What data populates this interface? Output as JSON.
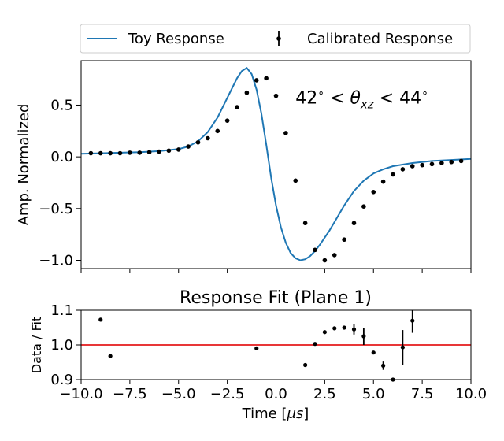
{
  "chart_data": [
    {
      "type": "line",
      "ylabel": "Amp. Normalized",
      "xlim": [
        -10,
        10
      ],
      "ylim": [
        -1.08,
        0.93
      ],
      "x_ticks": [
        -10,
        -7.5,
        -5,
        -2.5,
        0,
        2.5,
        5,
        7.5,
        10
      ],
      "y_ticks": [
        {
          "v": 0.5,
          "label": "0.5"
        },
        {
          "v": 0.0,
          "label": "0.0"
        },
        {
          "v": -0.5,
          "label": "−0.5"
        },
        {
          "v": -1.0,
          "label": "−1.0"
        }
      ],
      "legend": {
        "placement": "above",
        "entries": [
          {
            "label": "Toy Response",
            "color": "#1f77b4",
            "kind": "line"
          },
          {
            "label": "Calibrated Response",
            "color": "#000000",
            "kind": "errorbar"
          }
        ]
      },
      "annotation": {
        "parts": [
          {
            "text": "42",
            "role": "normal"
          },
          {
            "text": "∘",
            "role": "super"
          },
          {
            "text": " < ",
            "role": "normal"
          },
          {
            "text": "θ",
            "role": "italic"
          },
          {
            "text": "xz",
            "role": "sub"
          },
          {
            "text": " < 44",
            "role": "normal"
          },
          {
            "text": "∘",
            "role": "super"
          }
        ],
        "x": 1.0,
        "y": 0.57
      },
      "series": [
        {
          "name": "Toy Response",
          "kind": "line",
          "color": "#1f77b4",
          "x": [
            -10,
            -9,
            -8,
            -7,
            -6,
            -5,
            -4.5,
            -4,
            -3.5,
            -3,
            -2.5,
            -2,
            -1.75,
            -1.5,
            -1.25,
            -1,
            -0.75,
            -0.5,
            -0.25,
            0,
            0.25,
            0.5,
            0.75,
            1,
            1.25,
            1.5,
            1.75,
            2,
            2.25,
            2.5,
            2.75,
            3,
            3.5,
            4,
            4.5,
            5,
            5.5,
            6,
            7,
            8,
            9,
            10
          ],
          "y": [
            0.03,
            0.035,
            0.04,
            0.045,
            0.055,
            0.075,
            0.1,
            0.15,
            0.24,
            0.38,
            0.57,
            0.76,
            0.83,
            0.86,
            0.8,
            0.65,
            0.42,
            0.12,
            -0.2,
            -0.47,
            -0.68,
            -0.83,
            -0.93,
            -0.98,
            -1.0,
            -0.99,
            -0.96,
            -0.91,
            -0.85,
            -0.78,
            -0.71,
            -0.63,
            -0.47,
            -0.33,
            -0.23,
            -0.16,
            -0.12,
            -0.09,
            -0.06,
            -0.04,
            -0.03,
            -0.02
          ]
        },
        {
          "name": "Calibrated Response",
          "kind": "scatter",
          "color": "#000000",
          "x": [
            -9.5,
            -9,
            -8.5,
            -8,
            -7.5,
            -7,
            -6.5,
            -6,
            -5.5,
            -5,
            -4.5,
            -4,
            -3.5,
            -3,
            -2.5,
            -2,
            -1.5,
            -1,
            -0.5,
            0,
            0.5,
            1,
            1.5,
            2,
            2.5,
            3,
            3.5,
            4,
            4.5,
            5,
            5.5,
            6,
            6.5,
            7,
            7.5,
            8,
            8.5,
            9,
            9.5
          ],
          "y": [
            0.035,
            0.035,
            0.035,
            0.035,
            0.04,
            0.04,
            0.045,
            0.05,
            0.06,
            0.07,
            0.1,
            0.14,
            0.18,
            0.25,
            0.35,
            0.48,
            0.62,
            0.74,
            0.76,
            0.59,
            0.23,
            -0.23,
            -0.64,
            -0.9,
            -1.0,
            -0.95,
            -0.8,
            -0.64,
            -0.48,
            -0.34,
            -0.24,
            -0.17,
            -0.12,
            -0.09,
            -0.08,
            -0.07,
            -0.06,
            -0.05,
            -0.04
          ]
        }
      ]
    },
    {
      "type": "scatter",
      "title": "Response Fit (Plane 1)",
      "xlabel_parts": [
        {
          "text": "Time [",
          "role": "normal"
        },
        {
          "text": "μs",
          "role": "italic"
        },
        {
          "text": "]",
          "role": "normal"
        }
      ],
      "ylabel": "Data / Fit",
      "xlim": [
        -10,
        10
      ],
      "ylim": [
        0.9,
        1.1
      ],
      "x_ticks": [
        {
          "v": -10,
          "label": "−10.0"
        },
        {
          "v": -7.5,
          "label": "−7.5"
        },
        {
          "v": -5,
          "label": "−5.0"
        },
        {
          "v": -2.5,
          "label": "−2.5"
        },
        {
          "v": 0,
          "label": "0.0"
        },
        {
          "v": 2.5,
          "label": "2.5"
        },
        {
          "v": 5,
          "label": "5.0"
        },
        {
          "v": 7.5,
          "label": "7.5"
        },
        {
          "v": 10,
          "label": "10.0"
        }
      ],
      "y_ticks": [
        {
          "v": 1.1,
          "label": "1.1"
        },
        {
          "v": 1.0,
          "label": "1.0"
        },
        {
          "v": 0.9,
          "label": "0.9"
        }
      ],
      "reference_line": {
        "y": 1.0,
        "color": "#e41a1c"
      },
      "series": [
        {
          "color": "#000000",
          "x": [
            -9,
            -8.5,
            -1,
            1.5,
            2,
            2.5,
            3,
            3.5,
            4,
            4.5,
            5,
            5.5,
            6,
            6.5,
            7
          ],
          "y": [
            1.073,
            0.968,
            0.99,
            0.942,
            1.003,
            1.037,
            1.048,
            1.05,
            1.045,
            1.025,
            0.978,
            0.94,
            0.9,
            0.993,
            1.07
          ],
          "err": [
            0,
            0,
            0,
            0,
            0,
            0,
            0,
            0,
            0.015,
            0.025,
            0,
            0.012,
            0,
            0.05,
            0.035
          ]
        }
      ]
    }
  ]
}
